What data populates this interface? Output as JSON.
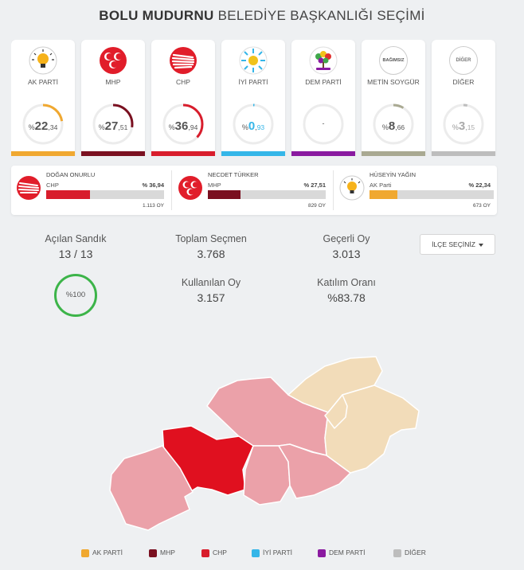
{
  "header": {
    "title_bold": "BOLU MUDURNU",
    "title_rest": "BELEDİYE BAŞKANLIĞI SEÇİMİ"
  },
  "parties": [
    {
      "name": "AK PARTİ",
      "pct_int": "22",
      "pct_dec": "34",
      "pct": 22.34,
      "color": "#f0a830",
      "logo": "ak-parti-bulb-icon"
    },
    {
      "name": "MHP",
      "pct_int": "27",
      "pct_dec": "51",
      "pct": 27.51,
      "color": "#7a1020",
      "logo": "mhp-crescents-icon"
    },
    {
      "name": "CHP",
      "pct_int": "36",
      "pct_dec": "94",
      "pct": 36.94,
      "color": "#d81d2c",
      "logo": "chp-arrows-icon"
    },
    {
      "name": "İYİ PARTİ",
      "pct_int": "0",
      "pct_dec": "93",
      "pct": 0.93,
      "color": "#35b6e8",
      "logo": "iyi-parti-sun-icon"
    },
    {
      "name": "DEM PARTİ",
      "pct_text": "-",
      "pct": 0,
      "color": "#8a1aa0",
      "logo": "dem-parti-tree-icon"
    },
    {
      "name": "METİN SOYGÜR",
      "badge": "BAĞIMSIZ",
      "pct_int": "8",
      "pct_dec": "66",
      "pct": 8.66,
      "color": "#a9a992",
      "logo": "independent-badge-icon"
    },
    {
      "name": "DİĞER",
      "badge": "DİĞER",
      "pct_int": "3",
      "pct_dec": "15",
      "pct": 3.15,
      "color": "#bdbdbd",
      "logo": "other-badge-icon"
    }
  ],
  "candidates": [
    {
      "name": "DOĞAN ONURLU",
      "party": "CHP",
      "pct_label": "% 36,94",
      "pct": 36.94,
      "votes": "1.113 OY",
      "color": "#d81d2c"
    },
    {
      "name": "NECDET TÜRKER",
      "party": "MHP",
      "pct_label": "% 27,51",
      "pct": 27.51,
      "votes": "829 OY",
      "color": "#7a1020"
    },
    {
      "name": "HÜSEYİN YAĞIN",
      "party": "AK Parti",
      "pct_label": "% 22,34",
      "pct": 22.34,
      "votes": "673 OY",
      "color": "#f0a830"
    }
  ],
  "stats": {
    "opened_label": "Açılan Sandık",
    "opened_value": "13 / 13",
    "voters_label": "Toplam Seçmen",
    "voters_value": "3.768",
    "valid_label": "Geçerli Oy",
    "valid_value": "3.013",
    "used_label": "Kullanılan Oy",
    "used_value": "3.157",
    "turnout_label": "Katılım Oranı",
    "turnout_value": "%83.78",
    "opened_pct": "%100"
  },
  "district_select": {
    "label": "İLÇE SEÇİNİZ"
  },
  "legend": [
    "AK PARTİ",
    "MHP",
    "CHP",
    "İYİ PARTİ",
    "DEM PARTİ",
    "DİĞER"
  ],
  "colors": {
    "ak": "#f0a830",
    "mhp": "#7a1020",
    "chp": "#d81d2c",
    "iyi": "#35b6e8",
    "dem": "#8a1aa0",
    "other": "#bdbdbd",
    "map_chp_dark": "#e0101f",
    "map_chp_light": "#eba1a9",
    "map_ak_light": "#f2dcb9"
  }
}
